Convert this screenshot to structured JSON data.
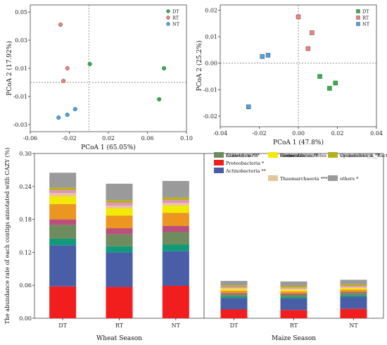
{
  "chart_data": [
    {
      "type": "scatter",
      "xlabel": "PCoA 1 (65.05%)",
      "ylabel": "PCoA 2 (17.92%)",
      "xlim": [
        -0.06,
        0.1
      ],
      "ylim": [
        -0.035,
        0.055
      ],
      "xticks": [
        "-0.06",
        "-0.02",
        "0.02",
        "0.06",
        "0.10"
      ],
      "xtick_values": [
        -0.06,
        -0.02,
        0.02,
        0.06,
        0.1
      ],
      "yticks": [
        "0.05",
        "0.03",
        "0.01",
        "-0.01",
        "-0.03"
      ],
      "ytick_values": [
        0.05,
        0.03,
        0.01,
        -0.01,
        -0.03
      ],
      "legend_position": "top-right",
      "series": [
        {
          "name": "DT",
          "color": "#2db34a",
          "shape": "circle",
          "points": [
            [
              0.001,
              0.013
            ],
            [
              0.077,
              0.01
            ],
            [
              0.072,
              -0.012
            ]
          ]
        },
        {
          "name": "RT",
          "color": "#f08080",
          "shape": "circle",
          "points": [
            [
              -0.029,
              0.041
            ],
            [
              -0.022,
              0.01
            ],
            [
              -0.026,
              0.001
            ]
          ]
        },
        {
          "name": "NT",
          "color": "#4aa3df",
          "shape": "circle",
          "points": [
            [
              -0.031,
              -0.025
            ],
            [
              -0.022,
              -0.023
            ],
            [
              -0.014,
              -0.019
            ]
          ]
        }
      ]
    },
    {
      "type": "scatter",
      "xlabel": "PCoA 1 (47.8%)",
      "ylabel": "PCoA 2 (25.2%)",
      "xlim": [
        -0.04,
        0.04
      ],
      "ylim": [
        -0.024,
        0.022
      ],
      "xticks": [
        "-0.04",
        "-0.02",
        "0.00",
        "0.02",
        "0.04"
      ],
      "xtick_values": [
        -0.04,
        -0.02,
        0.0,
        0.02,
        0.04
      ],
      "yticks": [
        "0.02",
        "0.01",
        "0.00",
        "-0.01",
        "-0.02"
      ],
      "ytick_values": [
        0.02,
        0.01,
        0.0,
        -0.01,
        -0.02
      ],
      "legend_position": "top-right",
      "series": [
        {
          "name": "DT",
          "color": "#2db34a",
          "shape": "square",
          "points": [
            [
              0.011,
              -0.005
            ],
            [
              0.016,
              -0.0095
            ],
            [
              0.019,
              -0.0075
            ]
          ]
        },
        {
          "name": "RT",
          "color": "#f08080",
          "shape": "square",
          "points": [
            [
              0.0,
              0.0175
            ],
            [
              0.007,
              0.0115
            ],
            [
              0.005,
              0.0055
            ]
          ]
        },
        {
          "name": "NT",
          "color": "#4aa3df",
          "shape": "square",
          "points": [
            [
              -0.0185,
              0.0025
            ],
            [
              -0.0155,
              0.003
            ],
            [
              -0.0255,
              -0.0165
            ]
          ]
        }
      ]
    },
    {
      "type": "bar",
      "stacked": true,
      "ylabel": "The abundance rate of each contigs annotated with CAZY (%)",
      "ylim": [
        0,
        0.3
      ],
      "yticks": [
        "0.00",
        "0.06",
        "0.12",
        "0.18",
        "0.24",
        "0.30"
      ],
      "ytick_values": [
        0.0,
        0.06,
        0.12,
        0.18,
        0.24,
        0.3
      ],
      "groups": [
        {
          "label": "Wheat Season",
          "categories": [
            "DT",
            "RT",
            "NT"
          ]
        },
        {
          "label": "Maize Season",
          "categories": [
            "DT",
            "RT",
            "NT"
          ]
        }
      ],
      "series": [
        {
          "name": "Proteobacteria",
          "sig": "*",
          "color": "#f21d1d",
          "values": [
            0.058,
            0.057,
            0.059,
            0.016,
            0.015,
            0.017
          ]
        },
        {
          "name": "Actinobacteria",
          "sig": "**",
          "color": "#4a5ea8",
          "values": [
            0.075,
            0.063,
            0.063,
            0.021,
            0.021,
            0.022
          ]
        },
        {
          "name": "Acidobacteria",
          "sig": "",
          "color": "#0f9a7a",
          "values": [
            0.012,
            0.011,
            0.012,
            0.003,
            0.003,
            0.003
          ]
        },
        {
          "name": "Chloroflexi",
          "sig": "***",
          "color": "#6e8c5e",
          "values": [
            0.025,
            0.022,
            0.023,
            0.004,
            0.004,
            0.004
          ]
        },
        {
          "name": "Firmicutes",
          "sig": "",
          "color": "#bb4f7c",
          "values": [
            0.01,
            0.011,
            0.011,
            0.002,
            0.002,
            0.002
          ]
        },
        {
          "name": "Bacteroidetes",
          "sig": "**",
          "color": "#ec9520",
          "values": [
            0.028,
            0.023,
            0.024,
            0.004,
            0.004,
            0.004
          ]
        },
        {
          "name": "Gemmatimonadetes",
          "sig": "*",
          "color": "#f2ea00",
          "values": [
            0.014,
            0.013,
            0.013,
            0.003,
            0.003,
            0.003
          ]
        },
        {
          "name": "Thaumarchaeota",
          "sig": "****",
          "color": "#e7c49a",
          "values": [
            0.006,
            0.005,
            0.005,
            0.002,
            0.002,
            0.002
          ]
        },
        {
          "name": "Cyanobacteria",
          "sig": "**",
          "color": "#e28ec9",
          "values": [
            0.005,
            0.005,
            0.005,
            0.002,
            0.002,
            0.002
          ]
        },
        {
          "name": "unclassified_d__Bacteria",
          "sig": "**",
          "color": "#b3b01b",
          "values": [
            0.005,
            0.005,
            0.005,
            0.003,
            0.003,
            0.003
          ]
        },
        {
          "name": "others",
          "sig": "*",
          "color": "#9a9a9a",
          "values": [
            0.027,
            0.03,
            0.03,
            0.008,
            0.008,
            0.008
          ]
        }
      ]
    }
  ]
}
